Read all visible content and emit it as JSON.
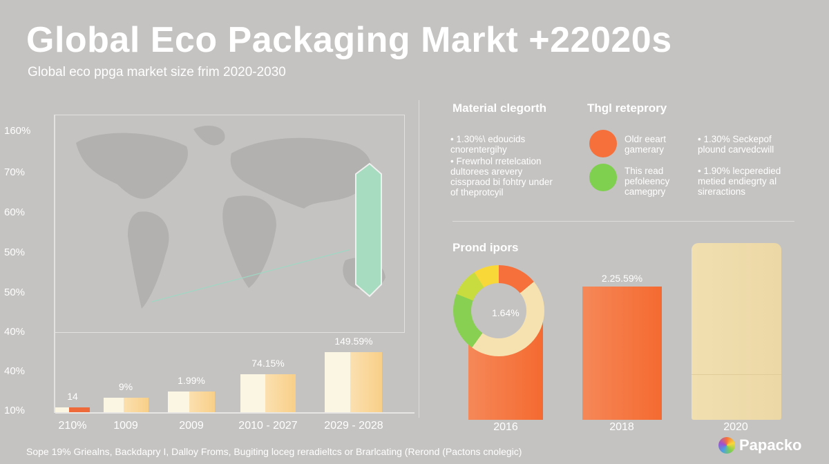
{
  "header": {
    "title": "Global Eco Packaging Markt +22020s",
    "subtitle": "Global eco ppga market size frim 2020-2030"
  },
  "chart_data": [
    {
      "type": "bar",
      "title": "",
      "y_ticks": [
        "160%",
        "70%",
        "60%",
        "50%",
        "50%",
        "40%",
        "40%",
        "10%"
      ],
      "categories": [
        "210%",
        "1009",
        "2009",
        "2010 - 2027",
        "2029 - 2028"
      ],
      "values": [
        12.6,
        20,
        24.7,
        38,
        55
      ],
      "data_labels": [
        "14",
        "9%",
        "1.99%",
        "74.15%",
        "149.59%"
      ],
      "grid": false,
      "colors": {
        "light": "#fbf6e4",
        "gradient_end": "#f8cf88",
        "first_accent": "#ef6a3a"
      }
    },
    {
      "type": "bar",
      "categories": [
        "2016",
        "2018",
        "2020"
      ],
      "data_labels": [
        "",
        "2.25.59%",
        ""
      ],
      "colors": {
        "bar": "#f5743c",
        "bag": "#eedcaa"
      }
    },
    {
      "type": "pie",
      "title": "Prond ipors",
      "center_label": "1.64%",
      "slices": [
        {
          "value": 14,
          "color": "#f5703a"
        },
        {
          "value": 46,
          "color": "#f6e2b0"
        },
        {
          "value": 21,
          "color": "#88d052"
        },
        {
          "value": 10,
          "color": "#c8dc40"
        },
        {
          "value": 9,
          "color": "#f8d838"
        }
      ]
    }
  ],
  "material": {
    "heading": "Material clegorth",
    "bullets": [
      "1.30%\\ edoucids cnorentergihy",
      "Frewrhol rretelcation dultorees arevery cisspraod bi fohtry under of theprotcyil"
    ]
  },
  "legend": {
    "heading": "Thgl reteprory",
    "items": [
      {
        "label": "Oldr eeart gamerary",
        "color": "#f5703a"
      },
      {
        "label": "This read pefoleency camegpry",
        "color": "#7fd04e"
      }
    ],
    "bullets": [
      "1.30% Seckepof plound carvedcwill",
      "1.90% lecperedied metied endiegrty al sireractions"
    ]
  },
  "footer": "Sope 19% Griealns, Backdapry I, Dalloy Froms, Bugiting loceg reradieltcs or Brarlcating (Rerond (Pactons cnolegic)",
  "brand": {
    "name": "Papacko"
  }
}
